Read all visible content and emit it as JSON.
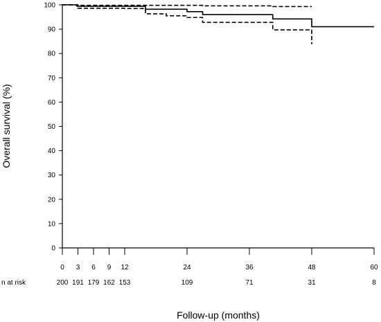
{
  "chart_data": {
    "type": "line",
    "title": "",
    "xlabel": "Follow-up (months)",
    "ylabel": "Overall survival (%)",
    "xlim": [
      0,
      60
    ],
    "ylim": [
      0,
      100
    ],
    "xticks": [
      0,
      3,
      6,
      9,
      12,
      24,
      36,
      48,
      60
    ],
    "yticks": [
      0,
      10,
      20,
      30,
      40,
      50,
      60,
      70,
      80,
      90,
      100
    ],
    "grid": false,
    "series": [
      {
        "style": "solid",
        "steps": [
          [
            0,
            100
          ],
          [
            2.8,
            99.4
          ],
          [
            16,
            98.2
          ],
          [
            24,
            97.2
          ],
          [
            27,
            96
          ],
          [
            40.5,
            94.2
          ],
          [
            48,
            91
          ],
          [
            60,
            91
          ]
        ]
      },
      {
        "style": "dashed",
        "steps": [
          [
            0,
            100
          ],
          [
            3,
            99.8
          ],
          [
            24,
            99.8
          ],
          [
            27,
            99.6
          ],
          [
            40.5,
            99.3
          ],
          [
            48,
            99.3
          ]
        ]
      },
      {
        "style": "dashed",
        "steps": [
          [
            0,
            100
          ],
          [
            3,
            98.6
          ],
          [
            12,
            98.5
          ],
          [
            16,
            96.3
          ],
          [
            20,
            95.5
          ],
          [
            24,
            94.8
          ],
          [
            27,
            92.8
          ],
          [
            40.5,
            89.7
          ],
          [
            48,
            83.8
          ]
        ]
      }
    ],
    "risk_table": {
      "label": "n at risk",
      "times": [
        0,
        3,
        6,
        9,
        12,
        24,
        36,
        48,
        60
      ],
      "counts": [
        "200",
        "191",
        "179",
        "162",
        "153",
        "109",
        "71",
        "31",
        "8"
      ]
    }
  }
}
